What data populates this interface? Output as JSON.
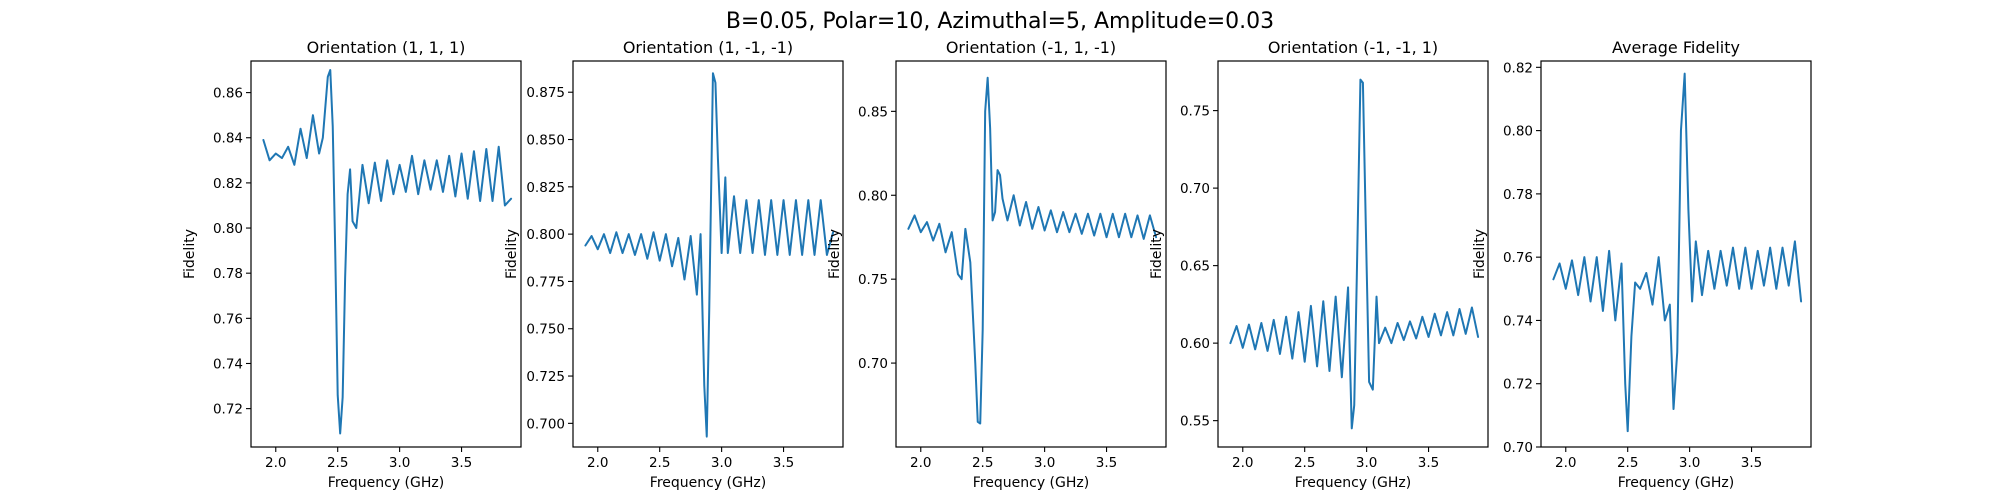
{
  "figure": {
    "suptitle": "B=0.05, Polar=10, Azimuthal=5, Amplitude=0.03",
    "line_color": "#1f77b4"
  },
  "chart_data": [
    {
      "type": "line",
      "title": "Orientation (1, 1, 1)",
      "xlabel": "Frequency (GHz)",
      "ylabel": "Fidelity",
      "xlim": [
        1.8,
        3.98
      ],
      "ylim": [
        0.703,
        0.874
      ],
      "xticks": [
        "2.0",
        "2.5",
        "3.0",
        "3.5"
      ],
      "yticks": [
        "0.72",
        "0.74",
        "0.76",
        "0.78",
        "0.80",
        "0.82",
        "0.84",
        "0.86"
      ],
      "series": [
        {
          "x": [
            1.9,
            1.95,
            2.0,
            2.05,
            2.1,
            2.15,
            2.2,
            2.25,
            2.3,
            2.35,
            2.38,
            2.42,
            2.44,
            2.46,
            2.48,
            2.5,
            2.52,
            2.54,
            2.56,
            2.58,
            2.6,
            2.62,
            2.65,
            2.7,
            2.75,
            2.8,
            2.85,
            2.9,
            2.95,
            3.0,
            3.05,
            3.1,
            3.15,
            3.2,
            3.25,
            3.3,
            3.35,
            3.4,
            3.45,
            3.5,
            3.55,
            3.6,
            3.65,
            3.7,
            3.75,
            3.8,
            3.85,
            3.9
          ],
          "y": [
            0.839,
            0.83,
            0.833,
            0.831,
            0.836,
            0.828,
            0.844,
            0.831,
            0.85,
            0.833,
            0.84,
            0.867,
            0.87,
            0.845,
            0.79,
            0.726,
            0.709,
            0.725,
            0.778,
            0.815,
            0.826,
            0.803,
            0.8,
            0.828,
            0.811,
            0.829,
            0.812,
            0.83,
            0.815,
            0.828,
            0.816,
            0.832,
            0.815,
            0.83,
            0.817,
            0.83,
            0.816,
            0.832,
            0.814,
            0.833,
            0.813,
            0.834,
            0.812,
            0.835,
            0.812,
            0.836,
            0.81,
            0.813
          ]
        }
      ]
    },
    {
      "type": "line",
      "title": "Orientation (1, -1, -1)",
      "xlabel": "Frequency (GHz)",
      "ylabel": "Fidelity",
      "xlim": [
        1.8,
        3.98
      ],
      "ylim": [
        0.6875,
        0.8915
      ],
      "xticks": [
        "2.0",
        "2.5",
        "3.0",
        "3.5"
      ],
      "yticks": [
        "0.700",
        "0.725",
        "0.750",
        "0.775",
        "0.800",
        "0.825",
        "0.850",
        "0.875"
      ],
      "series": [
        {
          "x": [
            1.9,
            1.95,
            2.0,
            2.05,
            2.1,
            2.15,
            2.2,
            2.25,
            2.3,
            2.35,
            2.4,
            2.45,
            2.5,
            2.55,
            2.6,
            2.65,
            2.7,
            2.75,
            2.8,
            2.83,
            2.86,
            2.88,
            2.9,
            2.93,
            2.95,
            2.97,
            3.0,
            3.03,
            3.05,
            3.1,
            3.15,
            3.2,
            3.25,
            3.3,
            3.35,
            3.4,
            3.45,
            3.5,
            3.55,
            3.6,
            3.65,
            3.7,
            3.75,
            3.8,
            3.85,
            3.9
          ],
          "y": [
            0.794,
            0.799,
            0.792,
            0.8,
            0.79,
            0.801,
            0.79,
            0.8,
            0.789,
            0.8,
            0.787,
            0.801,
            0.786,
            0.8,
            0.783,
            0.798,
            0.776,
            0.799,
            0.768,
            0.8,
            0.72,
            0.693,
            0.76,
            0.885,
            0.88,
            0.84,
            0.79,
            0.83,
            0.79,
            0.82,
            0.79,
            0.818,
            0.79,
            0.818,
            0.789,
            0.818,
            0.789,
            0.818,
            0.789,
            0.818,
            0.789,
            0.818,
            0.789,
            0.818,
            0.789,
            0.801
          ]
        }
      ]
    },
    {
      "type": "line",
      "title": "Orientation (-1, 1, -1)",
      "xlabel": "Frequency (GHz)",
      "ylabel": "Fidelity",
      "xlim": [
        1.8,
        3.98
      ],
      "ylim": [
        0.65,
        0.88
      ],
      "xticks": [
        "2.0",
        "2.5",
        "3.0",
        "3.5"
      ],
      "yticks": [
        "0.70",
        "0.75",
        "0.80",
        "0.85"
      ],
      "series": [
        {
          "x": [
            1.9,
            1.95,
            2.0,
            2.05,
            2.1,
            2.15,
            2.2,
            2.25,
            2.3,
            2.33,
            2.36,
            2.4,
            2.44,
            2.46,
            2.48,
            2.5,
            2.52,
            2.54,
            2.56,
            2.58,
            2.6,
            2.62,
            2.64,
            2.66,
            2.7,
            2.75,
            2.8,
            2.85,
            2.9,
            2.95,
            3.0,
            3.05,
            3.1,
            3.15,
            3.2,
            3.25,
            3.3,
            3.35,
            3.4,
            3.45,
            3.5,
            3.55,
            3.6,
            3.65,
            3.7,
            3.75,
            3.8,
            3.85,
            3.9
          ],
          "y": [
            0.78,
            0.788,
            0.778,
            0.784,
            0.773,
            0.783,
            0.766,
            0.778,
            0.753,
            0.75,
            0.78,
            0.76,
            0.7,
            0.665,
            0.664,
            0.72,
            0.85,
            0.87,
            0.84,
            0.785,
            0.79,
            0.815,
            0.812,
            0.798,
            0.785,
            0.8,
            0.782,
            0.796,
            0.78,
            0.793,
            0.779,
            0.791,
            0.778,
            0.79,
            0.778,
            0.789,
            0.777,
            0.789,
            0.776,
            0.789,
            0.775,
            0.789,
            0.775,
            0.789,
            0.775,
            0.788,
            0.774,
            0.788,
            0.775
          ]
        }
      ]
    },
    {
      "type": "line",
      "title": "Orientation (-1, -1, 1)",
      "xlabel": "Frequency (GHz)",
      "ylabel": "Fidelity",
      "xlim": [
        1.8,
        3.98
      ],
      "ylim": [
        0.533,
        0.782
      ],
      "xticks": [
        "2.0",
        "2.5",
        "3.0",
        "3.5"
      ],
      "yticks": [
        "0.55",
        "0.60",
        "0.65",
        "0.70",
        "0.75"
      ],
      "series": [
        {
          "x": [
            1.9,
            1.95,
            2.0,
            2.05,
            2.1,
            2.15,
            2.2,
            2.25,
            2.3,
            2.35,
            2.4,
            2.45,
            2.5,
            2.55,
            2.6,
            2.65,
            2.7,
            2.75,
            2.8,
            2.85,
            2.88,
            2.9,
            2.92,
            2.95,
            2.97,
            3.0,
            3.02,
            3.05,
            3.08,
            3.1,
            3.15,
            3.2,
            3.25,
            3.3,
            3.35,
            3.4,
            3.45,
            3.5,
            3.55,
            3.6,
            3.65,
            3.7,
            3.75,
            3.8,
            3.85,
            3.9
          ],
          "y": [
            0.6,
            0.611,
            0.597,
            0.612,
            0.596,
            0.613,
            0.595,
            0.615,
            0.593,
            0.617,
            0.59,
            0.62,
            0.588,
            0.624,
            0.585,
            0.627,
            0.582,
            0.63,
            0.578,
            0.636,
            0.545,
            0.56,
            0.64,
            0.77,
            0.768,
            0.65,
            0.575,
            0.57,
            0.63,
            0.6,
            0.61,
            0.6,
            0.613,
            0.602,
            0.614,
            0.603,
            0.617,
            0.604,
            0.619,
            0.605,
            0.62,
            0.605,
            0.622,
            0.606,
            0.623,
            0.604
          ]
        }
      ]
    },
    {
      "type": "line",
      "title": "Average Fidelity",
      "xlabel": "Frequency (GHz)",
      "ylabel": "Fidelity",
      "xlim": [
        1.8,
        3.98
      ],
      "ylim": [
        0.7,
        0.822
      ],
      "xticks": [
        "2.0",
        "2.5",
        "3.0",
        "3.5"
      ],
      "yticks": [
        "0.70",
        "0.72",
        "0.74",
        "0.76",
        "0.78",
        "0.80",
        "0.82"
      ],
      "series": [
        {
          "x": [
            1.9,
            1.95,
            2.0,
            2.05,
            2.1,
            2.15,
            2.2,
            2.25,
            2.3,
            2.35,
            2.4,
            2.45,
            2.48,
            2.5,
            2.53,
            2.56,
            2.6,
            2.65,
            2.7,
            2.75,
            2.8,
            2.84,
            2.87,
            2.9,
            2.93,
            2.96,
            2.99,
            3.02,
            3.05,
            3.1,
            3.15,
            3.2,
            3.25,
            3.3,
            3.35,
            3.4,
            3.45,
            3.5,
            3.55,
            3.6,
            3.65,
            3.7,
            3.75,
            3.8,
            3.85,
            3.9
          ],
          "y": [
            0.753,
            0.758,
            0.75,
            0.759,
            0.748,
            0.76,
            0.746,
            0.76,
            0.743,
            0.762,
            0.74,
            0.758,
            0.72,
            0.705,
            0.735,
            0.752,
            0.75,
            0.755,
            0.745,
            0.76,
            0.74,
            0.745,
            0.712,
            0.73,
            0.8,
            0.818,
            0.775,
            0.746,
            0.765,
            0.748,
            0.762,
            0.75,
            0.762,
            0.751,
            0.763,
            0.75,
            0.763,
            0.75,
            0.762,
            0.751,
            0.763,
            0.75,
            0.763,
            0.751,
            0.765,
            0.746
          ]
        }
      ]
    }
  ]
}
